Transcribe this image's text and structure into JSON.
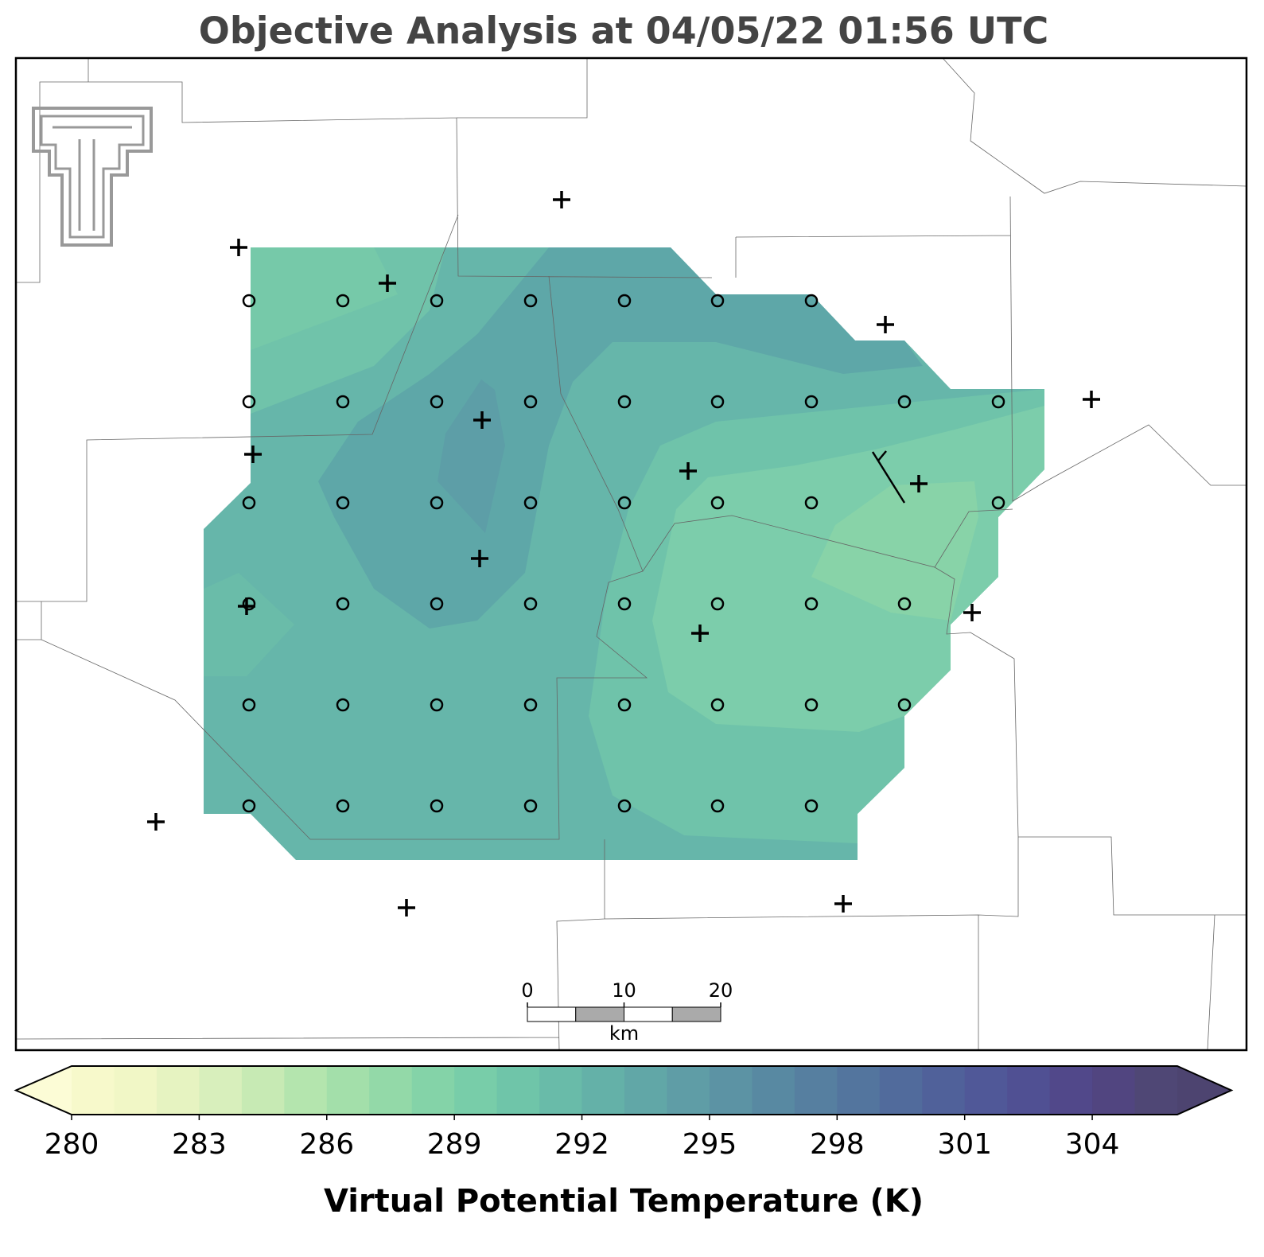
{
  "chart_data": {
    "type": "map",
    "title": "Objective Analysis at 04/05/22 01:56 UTC",
    "colorbar": {
      "label": "Virtual Potential Temperature (K)",
      "clim": [
        280,
        306
      ],
      "ticks": [
        280,
        283,
        286,
        289,
        292,
        295,
        298,
        301,
        304
      ],
      "colors": [
        "#f7f9cb",
        "#f1f7c6",
        "#e6f3c1",
        "#d8efbc",
        "#c7eab4",
        "#b4e5ae",
        "#a3dfaa",
        "#93d9a8",
        "#84d3a8",
        "#78cda9",
        "#6fc5a9",
        "#69bba9",
        "#64b1a8",
        "#61a7a7",
        "#5f9da6",
        "#5c93a4",
        "#5889a2",
        "#567fa0",
        "#53759e",
        "#516b9c",
        "#50619a",
        "#505898",
        "#505093",
        "#51488a",
        "#514580",
        "#4f4775"
      ],
      "under_color": "#fcfcd6",
      "over_color": "#4d4470"
    },
    "scale_bar": {
      "ticks": [
        0,
        10,
        20
      ],
      "unit": "km"
    }
  }
}
